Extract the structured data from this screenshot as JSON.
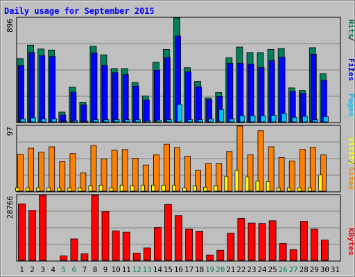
{
  "chart_data": {
    "type": "bar",
    "title": "Daily usage for September 2015",
    "categories": [
      "1",
      "2",
      "3",
      "4",
      "5",
      "6",
      "7",
      "8",
      "9",
      "10",
      "11",
      "12",
      "13",
      "14",
      "15",
      "16",
      "17",
      "18",
      "19",
      "20",
      "21",
      "22",
      "23",
      "24",
      "25",
      "26",
      "27",
      "28",
      "29",
      "30",
      "31"
    ],
    "weekend_days": [
      "5",
      "6",
      "12",
      "13",
      "19",
      "20",
      "26",
      "27"
    ],
    "panels": [
      {
        "id": "hits-files-pages",
        "max_label": "896",
        "ylim": [
          0,
          896
        ],
        "series": [
          {
            "name": "Hits",
            "color": "#00805c",
            "values": [
              545,
              661,
              629,
              620,
              84,
              299,
              170,
              653,
              578,
              460,
              460,
              340,
              223,
              514,
              625,
              896,
              467,
              349,
              207,
              253,
              553,
              645,
              598,
              598,
              625,
              634,
              293,
              271,
              640,
              415,
              0
            ]
          },
          {
            "name": "Files",
            "color": "#0000ff",
            "values": [
              485,
              599,
              571,
              563,
              59,
              257,
              146,
              595,
              486,
              425,
              408,
              309,
              188,
              446,
              555,
              741,
              432,
              302,
              192,
              220,
              504,
              506,
              498,
              469,
              529,
              558,
              262,
              247,
              583,
              357,
              0
            ]
          },
          {
            "name": "Pages",
            "color": "#00c0ff",
            "values": [
              25,
              35,
              25,
              25,
              5,
              10,
              5,
              20,
              20,
              20,
              20,
              20,
              10,
              15,
              20,
              151,
              20,
              20,
              25,
              106,
              25,
              53,
              53,
              53,
              57,
              73,
              40,
              48,
              20,
              45,
              0
            ]
          }
        ]
      },
      {
        "id": "visits-sites",
        "max_label": "97",
        "ylim": [
          0,
          97
        ],
        "series": [
          {
            "name": "Visits",
            "color": "#ff8000",
            "values": [
              55,
              64,
              58,
              66,
              44,
              56,
              27,
              68,
              48,
              61,
              62,
              49,
              39,
              54,
              70,
              65,
              52,
              31,
              41,
              41,
              59,
              97,
              54,
              90,
              66,
              50,
              45,
              62,
              65,
              54,
              0
            ]
          },
          {
            "name": "Sites",
            "color": "#ffff00",
            "values": [
              5,
              5,
              5,
              5,
              5,
              5,
              5,
              8,
              9,
              5,
              9,
              8,
              9,
              9,
              9,
              9,
              5,
              8,
              6,
              8,
              22,
              31,
              21,
              15,
              14,
              5,
              5,
              5,
              5,
              24,
              0
            ]
          }
        ]
      },
      {
        "id": "kbytes",
        "max_label": "28766",
        "ylim": [
          0,
          28766
        ],
        "series": [
          {
            "name": "KBytes",
            "color": "#ff0000",
            "values": [
              24978,
              22082,
              28766,
              0,
              2000,
              9500,
              2900,
              28766,
              21500,
              13000,
              12500,
              3200,
              5500,
              14500,
              24700,
              19800,
              13800,
              12800,
              2400,
              4500,
              12000,
              18500,
              16500,
              16300,
              17500,
              7500,
              4700,
              17300,
              13800,
              9000,
              0
            ]
          }
        ]
      }
    ],
    "right_labels": {
      "pages": "Pages",
      "files": "Files",
      "hits": "Hits",
      "visits": "Visits",
      "sites": "Sites",
      "kbytes": "KBytes",
      "sep": "/"
    },
    "colors": {
      "background": "#bfbfbf",
      "title": "#0000ff",
      "weekday_label": "#000000",
      "weekend_label": "#00805c",
      "gridline": "#808080",
      "outline": "#000000"
    }
  }
}
